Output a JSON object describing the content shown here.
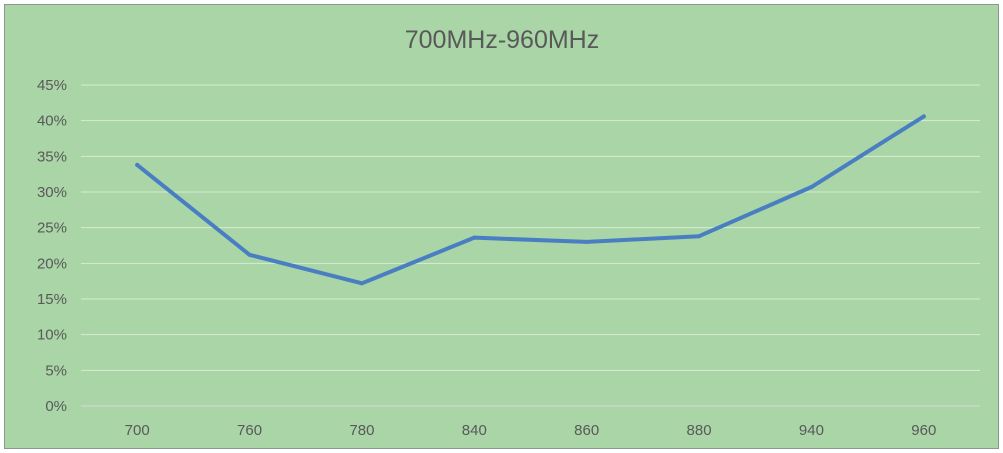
{
  "chart_data": {
    "type": "line",
    "title": "700MHz-960MHz",
    "xlabel": "",
    "ylabel": "",
    "categories": [
      "700",
      "760",
      "780",
      "840",
      "860",
      "880",
      "940",
      "960"
    ],
    "series": [
      {
        "values": [
          33.8,
          21.2,
          17.2,
          23.6,
          23.0,
          23.8,
          30.7,
          40.6
        ]
      }
    ],
    "ylim": [
      0,
      45
    ],
    "yticks": [
      0,
      5,
      10,
      15,
      20,
      25,
      30,
      35,
      40,
      45
    ],
    "ytick_labels": [
      "0%",
      "5%",
      "10%",
      "15%",
      "20%",
      "25%",
      "30%",
      "35%",
      "40%",
      "45%"
    ],
    "grid": true,
    "legend": "none",
    "colors": {
      "background": "#a9d5a7",
      "series": "#4a7ec2",
      "gridline": "#d6ecd4",
      "text": "#595959"
    }
  }
}
